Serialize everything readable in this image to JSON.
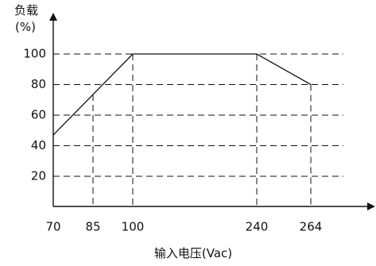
{
  "chart_data": {
    "type": "line",
    "ylabel": "负载",
    "yunit": "(%)",
    "xlabel": "输入电压(Vac)",
    "x_ticks": [
      70,
      85,
      100,
      240,
      264
    ],
    "y_ticks": [
      20,
      40,
      60,
      80,
      100
    ],
    "grid": true,
    "series": [
      {
        "x": [
          70,
          100,
          240,
          264
        ],
        "y": [
          47,
          100,
          100,
          80
        ]
      }
    ],
    "colors": {
      "line": "#111111",
      "axis": "#111111",
      "grid": "#111111"
    }
  }
}
